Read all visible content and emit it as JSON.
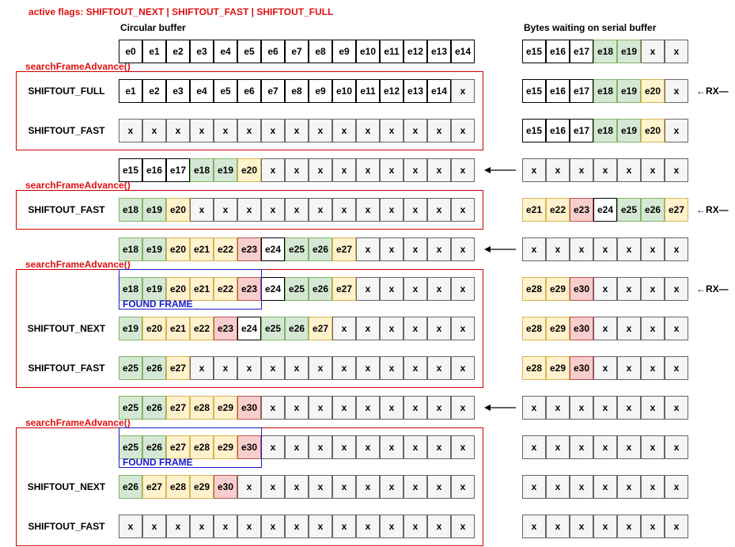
{
  "title": "active flags: SHIFTOUT_NEXT | SHIFTOUT_FAST | SHIFTOUT_FULL",
  "headers": {
    "circular": "Circular buffer",
    "serial": "Bytes waiting on serial buffer"
  },
  "colors": {
    "white": "#ffffff",
    "gray": "#f5f5f5",
    "green": "#d5e8d4",
    "yellow": "#fff2cc",
    "red": "#f8cecc",
    "accent_red": "#cc0000",
    "accent_blue": "#1a1acc"
  },
  "fn_label": "searchFrameAdvance()",
  "rx_label": "←RX—",
  "found_label": "FOUND FRAME",
  "rows": [
    {
      "label": "",
      "left": [
        "e0:w",
        "e1:w",
        "e2:w",
        "e3:w",
        "e4:w",
        "e5:w",
        "e6:w",
        "e7:w",
        "e8:w",
        "e9:w",
        "e10:w",
        "e11:w",
        "e12:w",
        "e13:w",
        "e14:w"
      ],
      "right": [
        "e15:w",
        "e16:w",
        "e17:w",
        "e18:g",
        "e19:g",
        "x:x",
        "x:x"
      ],
      "rx": false,
      "arrow": false
    },
    {
      "label": "SHIFTOUT_FULL",
      "left": [
        "e1:w",
        "e2:w",
        "e3:w",
        "e4:w",
        "e5:w",
        "e6:w",
        "e7:w",
        "e8:w",
        "e9:w",
        "e10:w",
        "e11:w",
        "e12:w",
        "e13:w",
        "e14:w",
        "x:x"
      ],
      "right": [
        "e15:w",
        "e16:w",
        "e17:w",
        "e18:g",
        "e19:g",
        "e20:y",
        "x:x"
      ],
      "rx": true,
      "arrow": false
    },
    {
      "label": "SHIFTOUT_FAST",
      "left": [
        "x:x",
        "x:x",
        "x:x",
        "x:x",
        "x:x",
        "x:x",
        "x:x",
        "x:x",
        "x:x",
        "x:x",
        "x:x",
        "x:x",
        "x:x",
        "x:x",
        "x:x"
      ],
      "right": [
        "e15:w",
        "e16:w",
        "e17:w",
        "e18:g",
        "e19:g",
        "e20:y",
        "x:x"
      ],
      "rx": false,
      "arrow": false
    },
    {
      "label": "",
      "left": [
        "e15:w",
        "e16:w",
        "e17:w",
        "e18:g",
        "e19:g",
        "e20:y",
        "x:x",
        "x:x",
        "x:x",
        "x:x",
        "x:x",
        "x:x",
        "x:x",
        "x:x",
        "x:x"
      ],
      "right": [
        "x:x",
        "x:x",
        "x:x",
        "x:x",
        "x:x",
        "x:x",
        "x:x"
      ],
      "rx": false,
      "arrow": true
    },
    {
      "label": "SHIFTOUT_FAST",
      "left": [
        "e18:g",
        "e19:g",
        "e20:y",
        "x:x",
        "x:x",
        "x:x",
        "x:x",
        "x:x",
        "x:x",
        "x:x",
        "x:x",
        "x:x",
        "x:x",
        "x:x",
        "x:x"
      ],
      "right": [
        "e21:y",
        "e22:y",
        "e23:r",
        "e24:w",
        "e25:g",
        "e26:g",
        "e27:y"
      ],
      "rx": true,
      "arrow": false
    },
    {
      "label": "",
      "left": [
        "e18:g",
        "e19:g",
        "e20:y",
        "e21:y",
        "e22:y",
        "e23:r",
        "e24:w",
        "e25:g",
        "e26:g",
        "e27:y",
        "x:x",
        "x:x",
        "x:x",
        "x:x",
        "x:x"
      ],
      "right": [
        "x:x",
        "x:x",
        "x:x",
        "x:x",
        "x:x",
        "x:x",
        "x:x"
      ],
      "rx": false,
      "arrow": true
    },
    {
      "label": "",
      "left": [
        "e18:g",
        "e19:g",
        "e20:y",
        "e21:y",
        "e22:y",
        "e23:r",
        "e24:w",
        "e25:g",
        "e26:g",
        "e27:y",
        "x:x",
        "x:x",
        "x:x",
        "x:x",
        "x:x"
      ],
      "right": [
        "e28:y",
        "e29:y",
        "e30:r",
        "x:x",
        "x:x",
        "x:x",
        "x:x"
      ],
      "rx": true,
      "arrow": false
    },
    {
      "label": "SHIFTOUT_NEXT",
      "left": [
        "e19:g",
        "e20:y",
        "e21:y",
        "e22:y",
        "e23:r",
        "e24:w",
        "e25:g",
        "e26:g",
        "e27:y",
        "x:x",
        "x:x",
        "x:x",
        "x:x",
        "x:x",
        "x:x"
      ],
      "right": [
        "e28:y",
        "e29:y",
        "e30:r",
        "x:x",
        "x:x",
        "x:x",
        "x:x"
      ],
      "rx": false,
      "arrow": false
    },
    {
      "label": "SHIFTOUT_FAST",
      "left": [
        "e25:g",
        "e26:g",
        "e27:y",
        "x:x",
        "x:x",
        "x:x",
        "x:x",
        "x:x",
        "x:x",
        "x:x",
        "x:x",
        "x:x",
        "x:x",
        "x:x",
        "x:x"
      ],
      "right": [
        "e28:y",
        "e29:y",
        "e30:r",
        "x:x",
        "x:x",
        "x:x",
        "x:x"
      ],
      "rx": false,
      "arrow": false
    },
    {
      "label": "",
      "left": [
        "e25:g",
        "e26:g",
        "e27:y",
        "e28:y",
        "e29:y",
        "e30:r",
        "x:x",
        "x:x",
        "x:x",
        "x:x",
        "x:x",
        "x:x",
        "x:x",
        "x:x",
        "x:x"
      ],
      "right": [
        "x:x",
        "x:x",
        "x:x",
        "x:x",
        "x:x",
        "x:x",
        "x:x"
      ],
      "rx": false,
      "arrow": true
    },
    {
      "label": "",
      "left": [
        "e25:g",
        "e26:g",
        "e27:y",
        "e28:y",
        "e29:y",
        "e30:r",
        "x:x",
        "x:x",
        "x:x",
        "x:x",
        "x:x",
        "x:x",
        "x:x",
        "x:x",
        "x:x"
      ],
      "right": [
        "x:x",
        "x:x",
        "x:x",
        "x:x",
        "x:x",
        "x:x",
        "x:x"
      ],
      "rx": false,
      "arrow": false
    },
    {
      "label": "SHIFTOUT_NEXT",
      "left": [
        "e26:g",
        "e27:y",
        "e28:y",
        "e29:y",
        "e30:r",
        "x:x",
        "x:x",
        "x:x",
        "x:x",
        "x:x",
        "x:x",
        "x:x",
        "x:x",
        "x:x",
        "x:x"
      ],
      "right": [
        "x:x",
        "x:x",
        "x:x",
        "x:x",
        "x:x",
        "x:x",
        "x:x"
      ],
      "rx": false,
      "arrow": false
    },
    {
      "label": "SHIFTOUT_FAST",
      "left": [
        "x:x",
        "x:x",
        "x:x",
        "x:x",
        "x:x",
        "x:x",
        "x:x",
        "x:x",
        "x:x",
        "x:x",
        "x:x",
        "x:x",
        "x:x",
        "x:x",
        "x:x"
      ],
      "right": [
        "x:x",
        "x:x",
        "x:x",
        "x:x",
        "x:x",
        "x:x",
        "x:x"
      ],
      "rx": false,
      "arrow": false
    }
  ],
  "groups": [
    {
      "rows": [
        1,
        2
      ],
      "label": "searchFrameAdvance()"
    },
    {
      "rows": [
        4,
        4
      ],
      "label": "searchFrameAdvance()"
    },
    {
      "rows": [
        6,
        8
      ],
      "label": "searchFrameAdvance()"
    },
    {
      "rows": [
        10,
        12
      ],
      "label": "searchFrameAdvance()"
    }
  ],
  "found_frames": [
    {
      "row": 6,
      "start": 0,
      "count": 6
    },
    {
      "row": 10,
      "start": 0,
      "count": 6
    }
  ]
}
